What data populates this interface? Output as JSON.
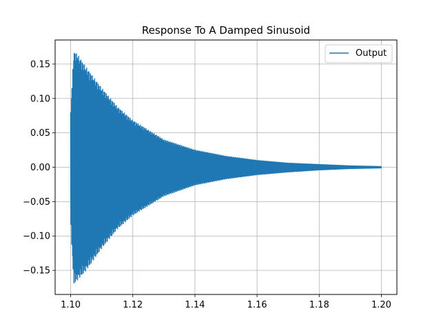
{
  "chart_data": {
    "type": "line",
    "title": "Response To A Damped Sinusoid",
    "xlabel": "",
    "ylabel": "",
    "xlim": [
      1.095,
      1.205
    ],
    "ylim": [
      -0.185,
      0.185
    ],
    "x_ticks": [
      1.1,
      1.12,
      1.14,
      1.16,
      1.18,
      1.2
    ],
    "x_tick_labels": [
      "1.10",
      "1.12",
      "1.14",
      "1.16",
      "1.18",
      "1.20"
    ],
    "y_ticks": [
      -0.15,
      -0.1,
      -0.05,
      0.0,
      0.05,
      0.1,
      0.15
    ],
    "y_tick_labels": [
      "−0.15",
      "−0.10",
      "−0.05",
      "0.00",
      "0.05",
      "0.10",
      "0.15"
    ],
    "grid": true,
    "legend_position": "top-right",
    "series": [
      {
        "name": "Output",
        "color": "#1f77b4",
        "x_start": 1.1,
        "x_end": 1.2,
        "envelope_x": [
          1.1,
          1.101,
          1.102,
          1.105,
          1.11,
          1.115,
          1.12,
          1.13,
          1.14,
          1.15,
          1.16,
          1.17,
          1.18,
          1.19,
          1.2
        ],
        "envelope_max": [
          0.08,
          0.168,
          0.165,
          0.145,
          0.115,
          0.088,
          0.068,
          0.04,
          0.025,
          0.016,
          0.01,
          0.006,
          0.004,
          0.002,
          0.001
        ],
        "envelope_min": [
          -0.08,
          -0.17,
          -0.165,
          -0.15,
          -0.118,
          -0.09,
          -0.07,
          -0.042,
          -0.026,
          -0.017,
          -0.011,
          -0.007,
          -0.004,
          -0.002,
          -0.001
        ]
      }
    ]
  }
}
